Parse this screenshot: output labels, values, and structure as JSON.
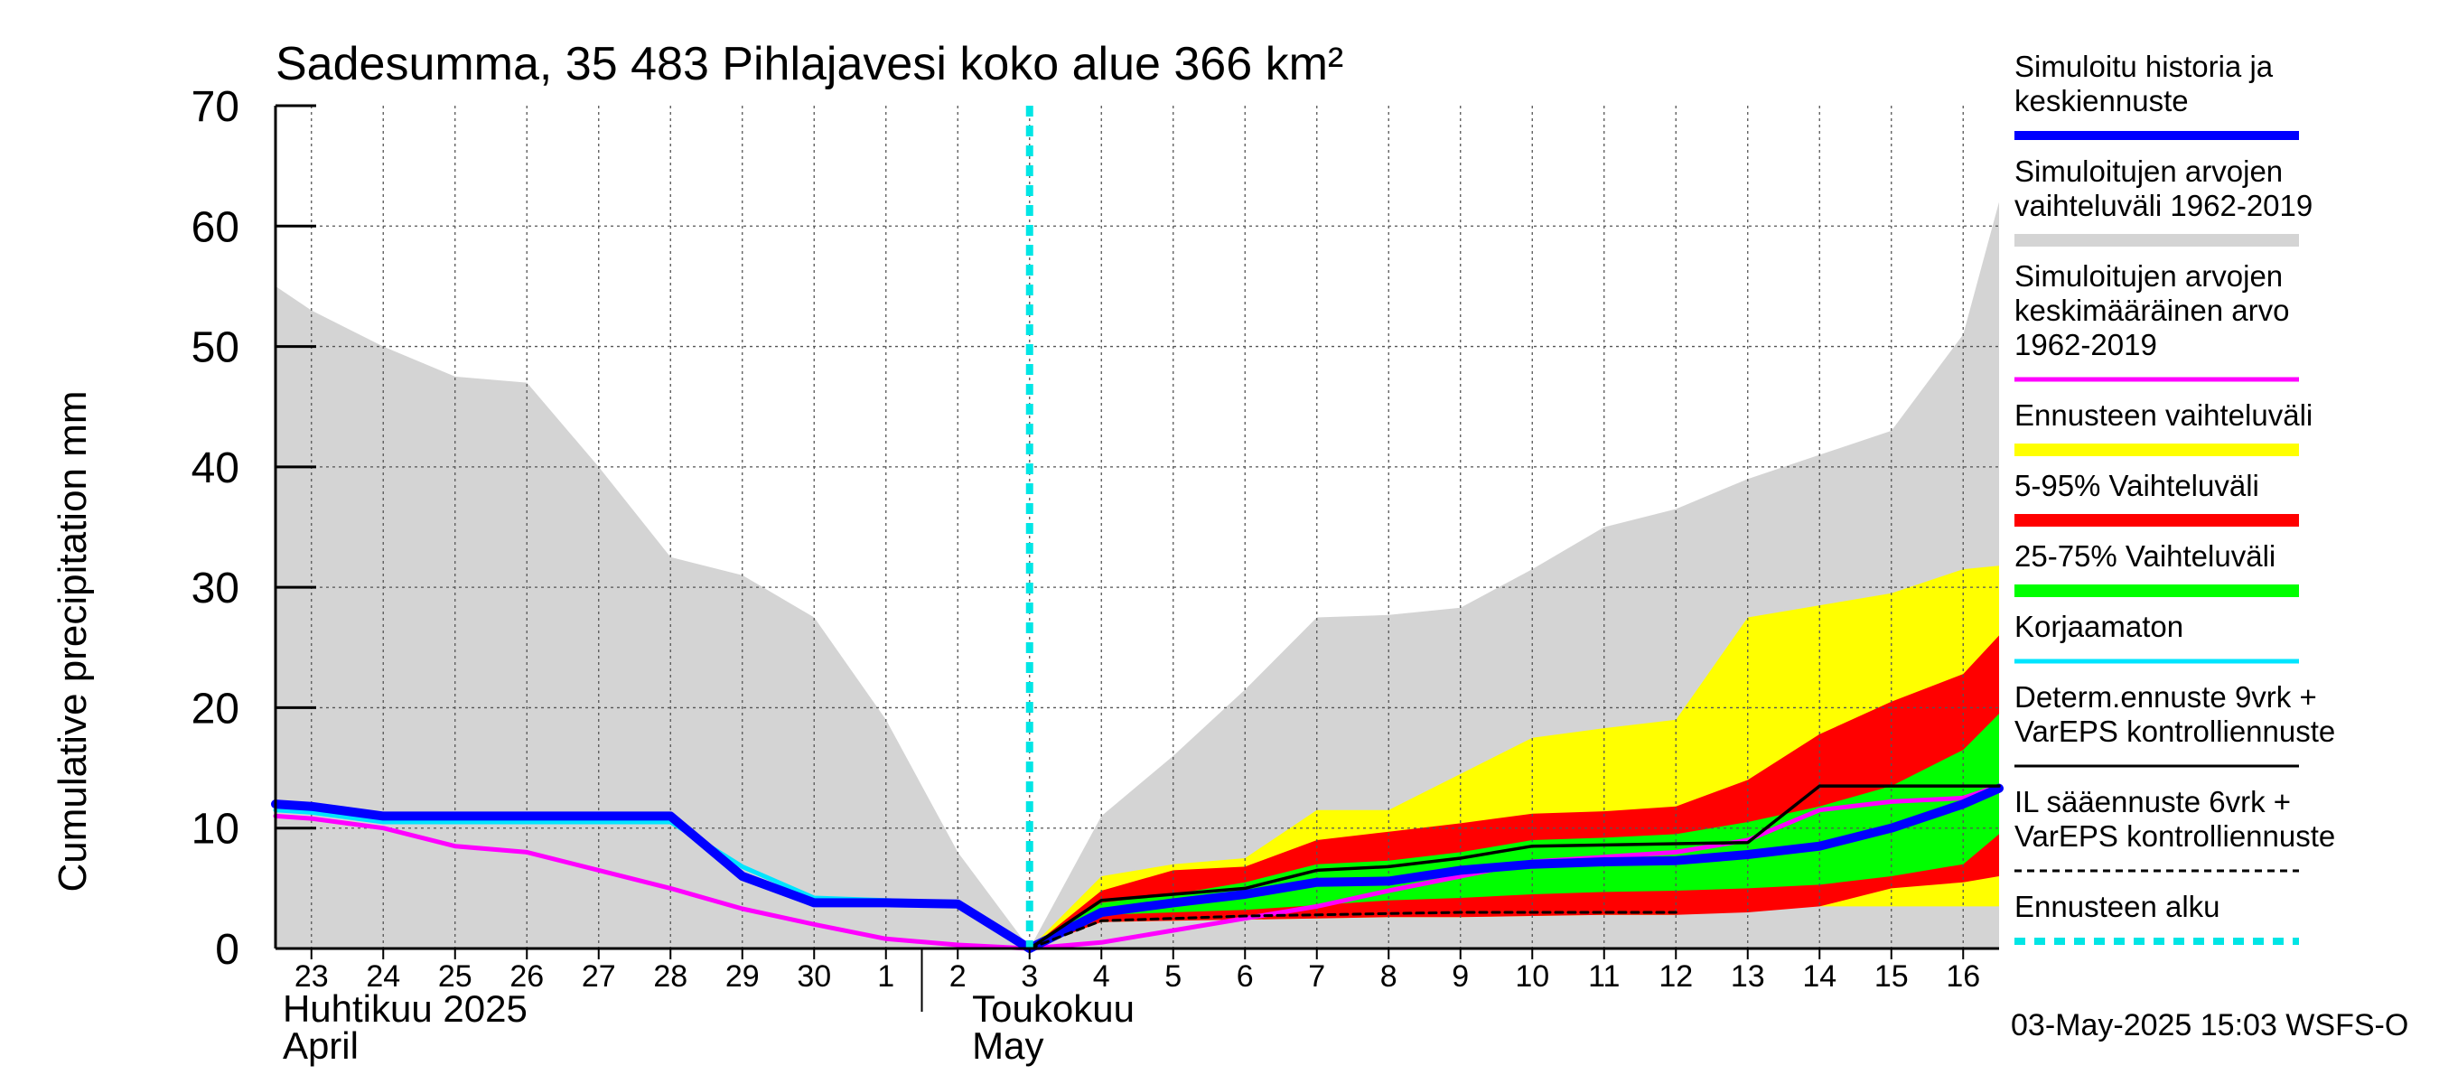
{
  "chart_data": {
    "type": "area",
    "title": "Sadesumma, 35 483 Pihlajavesi koko alue 366 km²",
    "ylabel": "Cumulative precipitation   mm",
    "xlabel": "",
    "ylim": [
      0,
      70
    ],
    "yticks": [
      "0",
      "10",
      "20",
      "30",
      "40",
      "50",
      "60",
      "70"
    ],
    "grid": true,
    "x_domain": [
      22.5,
      46.5
    ],
    "day_positions": [
      23,
      24,
      25,
      26,
      27,
      28,
      29,
      30,
      31,
      32,
      33,
      34,
      35,
      36,
      37,
      38,
      39,
      40,
      41,
      42,
      43,
      44,
      45,
      46
    ],
    "day_labels": [
      "23",
      "24",
      "25",
      "26",
      "27",
      "28",
      "29",
      "30",
      "1",
      "2",
      "3",
      "4",
      "5",
      "6",
      "7",
      "8",
      "9",
      "10",
      "11",
      "12",
      "13",
      "14",
      "15",
      "16"
    ],
    "month_labels": [
      {
        "fi": "Huhtikuu  2025",
        "en": "April",
        "x": 22.6
      },
      {
        "fi": "Toukokuu",
        "en": "May",
        "x": 32.2
      }
    ],
    "month_divider_x": 31.5,
    "forecast_start_x": 33,
    "series": [
      {
        "name": "Simuloitujen arvojen vaihteluväli 1962-2019",
        "kind": "band",
        "color": "#d4d4d4",
        "x": [
          22.5,
          23,
          24,
          25,
          26,
          27,
          28,
          29,
          30,
          31,
          32,
          33,
          34,
          35,
          36,
          37,
          38,
          39,
          40,
          41,
          42,
          43,
          44,
          45,
          46,
          46.5
        ],
        "upper": [
          55,
          53,
          50,
          47.5,
          47,
          40,
          32.5,
          31,
          27.5,
          19,
          8,
          0,
          11,
          16,
          21.5,
          27.5,
          27.7,
          28.3,
          31.5,
          35,
          36.5,
          39,
          41,
          43,
          51,
          62
        ],
        "lower": [
          0,
          0,
          0,
          0,
          0,
          0,
          0,
          0,
          0,
          0,
          0,
          0,
          0,
          0,
          0,
          0,
          0,
          0,
          0,
          0,
          0,
          0,
          0,
          0,
          0,
          0
        ]
      },
      {
        "name": "Ennusteen vaihteluväli",
        "kind": "band",
        "color": "#ffff00",
        "x": [
          33,
          34,
          35,
          36,
          37,
          38,
          39,
          40,
          41,
          42,
          43,
          44,
          45,
          46,
          46.5
        ],
        "upper": [
          0,
          6,
          7,
          7.5,
          11.5,
          11.5,
          14.5,
          17.5,
          18.3,
          19,
          27.5,
          28.5,
          29.5,
          31.5,
          31.8
        ],
        "lower": [
          0,
          2.2,
          2.3,
          2.4,
          2.5,
          2.6,
          2.6,
          2.7,
          2.8,
          2.8,
          3.5,
          3.5,
          3.5,
          3.5,
          3.5
        ]
      },
      {
        "name": "5-95% Vaihteluväli",
        "kind": "band",
        "color": "#ff0000",
        "x": [
          33,
          34,
          35,
          36,
          37,
          38,
          39,
          40,
          41,
          42,
          43,
          44,
          45,
          46,
          46.5
        ],
        "upper": [
          0,
          4.8,
          6.5,
          6.8,
          9,
          9.7,
          10.4,
          11.2,
          11.4,
          11.8,
          14,
          17.8,
          20.5,
          22.8,
          26
        ],
        "lower": [
          0,
          2.2,
          2.3,
          2.4,
          2.5,
          2.6,
          2.6,
          2.7,
          2.8,
          2.8,
          3,
          3.5,
          5,
          5.5,
          6
        ]
      },
      {
        "name": "25-75% Vaihteluväli",
        "kind": "band",
        "color": "#00ff00",
        "x": [
          33,
          34,
          35,
          36,
          37,
          38,
          39,
          40,
          41,
          42,
          43,
          44,
          45,
          46,
          46.5
        ],
        "upper": [
          0,
          3.8,
          4.5,
          5.5,
          7,
          7.3,
          8,
          9,
          9.2,
          9.5,
          10.5,
          11.8,
          13.5,
          16.5,
          19.5
        ],
        "lower": [
          0,
          2.8,
          3,
          3.2,
          3.6,
          4,
          4.2,
          4.5,
          4.7,
          4.8,
          5,
          5.3,
          6,
          7,
          9.5
        ]
      },
      {
        "name": "Simuloitujen arvojen keskimääräinen arvo 1962-2019",
        "kind": "line",
        "color": "#ff00ff",
        "width": 5,
        "x": [
          22.5,
          23,
          24,
          25,
          26,
          27,
          28,
          29,
          30,
          31,
          32,
          33,
          34,
          35,
          36,
          37,
          38,
          39,
          40,
          41,
          42,
          43,
          44,
          45,
          46,
          46.5
        ],
        "y": [
          11,
          10.8,
          10,
          8.5,
          8,
          6.5,
          5,
          3.3,
          2,
          0.8,
          0.3,
          0,
          0.5,
          1.5,
          2.5,
          3.5,
          4.8,
          6,
          7.2,
          7.6,
          8,
          9,
          11.5,
          12.2,
          12.5,
          13.5
        ]
      },
      {
        "name": "Korjaamaton",
        "kind": "line",
        "color": "#00e5ff",
        "width": 5,
        "x": [
          22.5,
          23,
          24,
          25,
          26,
          27,
          28,
          29,
          30,
          31,
          32,
          33
        ],
        "y": [
          11.5,
          11.3,
          10.5,
          10.5,
          10.5,
          10.5,
          10.5,
          6.8,
          4.2,
          4.0,
          3.8,
          0
        ]
      },
      {
        "name": "Simuloitu historia ja keskiennuste",
        "kind": "line",
        "color": "#0000ff",
        "width": 10,
        "x": [
          22.5,
          23,
          24,
          25,
          26,
          27,
          28,
          29,
          30,
          31,
          32,
          33,
          34,
          35,
          36,
          37,
          38,
          39,
          40,
          41,
          42,
          43,
          44,
          45,
          46,
          46.5
        ],
        "y": [
          12,
          11.8,
          11,
          11,
          11,
          11,
          11,
          6,
          3.8,
          3.8,
          3.7,
          0,
          3,
          3.8,
          4.5,
          5.5,
          5.6,
          6.5,
          7,
          7.2,
          7.3,
          7.8,
          8.5,
          10,
          12,
          13.3
        ]
      },
      {
        "name": "Determ.ennuste 9vrk + VarEPS kontrolliennuste",
        "kind": "line",
        "color": "#000000",
        "width": 3.5,
        "x": [
          33,
          34,
          35,
          36,
          37,
          38,
          39,
          40,
          41,
          42,
          43,
          44,
          45,
          46,
          46.5
        ],
        "y": [
          0,
          4,
          4.5,
          5,
          6.5,
          6.8,
          7.5,
          8.5,
          8.6,
          8.7,
          8.8,
          13.5,
          13.5,
          13.5,
          13.5
        ]
      },
      {
        "name": "IL sääennuste 6vrk + VarEPS kontrolliennuste",
        "kind": "line",
        "dashed": true,
        "color": "#000000",
        "width": 3,
        "x": [
          33,
          34,
          35,
          36,
          37,
          38,
          39,
          40,
          41,
          42
        ],
        "y": [
          0,
          2.3,
          2.5,
          2.7,
          2.8,
          2.9,
          3,
          3,
          3,
          3
        ]
      },
      {
        "name": "Ennusteen alku",
        "kind": "vline",
        "dashed": true,
        "color": "#00e5e5",
        "width": 8,
        "x_value": 33
      }
    ]
  },
  "legend": {
    "items": [
      {
        "lines": [
          "Simuloitu historia ja",
          "keskiennuste"
        ],
        "color": "#0000ff",
        "swatch": "thick"
      },
      {
        "lines": [
          "Simuloitujen arvojen",
          "vaihteluväli 1962-2019"
        ],
        "color": "#d4d4d4",
        "swatch": "band"
      },
      {
        "lines": [
          "Simuloitujen arvojen",
          "keskimääräinen arvo",
          "   1962-2019"
        ],
        "color": "#ff00ff",
        "swatch": "thin"
      },
      {
        "lines": [
          "Ennusteen vaihteluväli"
        ],
        "color": "#ffff00",
        "swatch": "band"
      },
      {
        "lines": [
          "5-95% Vaihteluväli"
        ],
        "color": "#ff0000",
        "swatch": "band"
      },
      {
        "lines": [
          "25-75% Vaihteluväli"
        ],
        "color": "#00ff00",
        "swatch": "band"
      },
      {
        "lines": [
          "Korjaamaton"
        ],
        "color": "#00e5ff",
        "swatch": "thin"
      },
      {
        "lines": [
          "Determ.ennuste 9vrk +",
          "VarEPS kontrolliennuste"
        ],
        "color": "#000000",
        "swatch": "line"
      },
      {
        "lines": [
          "IL sääennuste 6vrk  +",
          "  VarEPS kontrolliennuste"
        ],
        "color": "#000000",
        "swatch": "dashed"
      },
      {
        "lines": [
          "Ennusteen alku"
        ],
        "color": "#00e5e5",
        "swatch": "dotted"
      }
    ]
  },
  "footer": {
    "timestamp": "03-May-2025 15:03 WSFS-O"
  }
}
